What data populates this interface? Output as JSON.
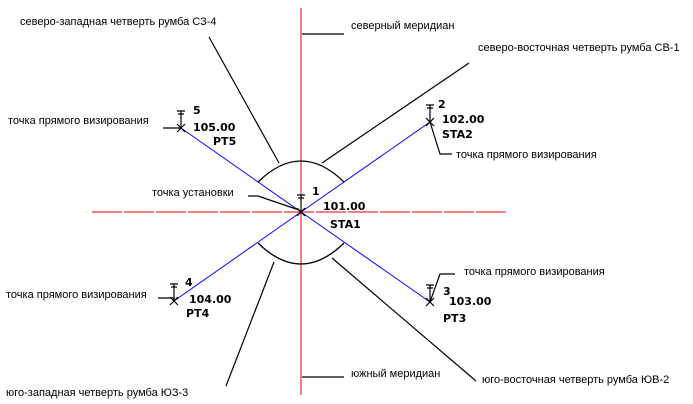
{
  "colors": {
    "meridian": "#e00000",
    "sight_line": "#0000ff",
    "leader": "#000000"
  },
  "labels": {
    "nw_quarter": "северо-западная четверть румба СЗ-4",
    "north_meridian": "северный меридиан",
    "ne_quarter": "северо-восточная четверть румба СВ-1",
    "sight_point_5": "точка прямого визирования",
    "sight_point_2": "точка прямого визирования",
    "station_point": "точка установки",
    "sight_point_3": "точка прямого визирования",
    "sight_point_4": "точка прямого визирования",
    "south_meridian": "южный меридиан",
    "sw_quarter": "юго-западная четверть румба ЮЗ-3",
    "se_quarter": "юго-восточная четверть румба ЮВ-2"
  },
  "points": [
    {
      "number": "1",
      "elevation": "101.00",
      "name": "STA1"
    },
    {
      "number": "2",
      "elevation": "102.00",
      "name": "STA2"
    },
    {
      "number": "3",
      "elevation": "103.00",
      "name": "PT3"
    },
    {
      "number": "4",
      "elevation": "104.00",
      "name": "PT4"
    },
    {
      "number": "5",
      "elevation": "105.00",
      "name": "PT5"
    }
  ]
}
